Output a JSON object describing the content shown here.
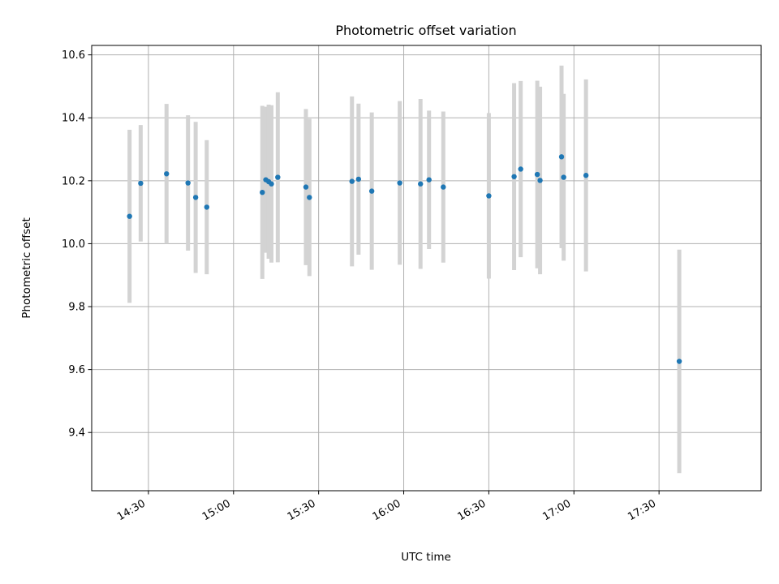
{
  "chart_data": {
    "type": "scatter",
    "title": "Photometric offset variation",
    "xlabel": "UTC time",
    "ylabel": "Photometric offset",
    "x_axis_type": "time",
    "xlim": [
      "14:10",
      "18:06"
    ],
    "ylim": [
      9.215,
      10.63
    ],
    "xticks": [
      "14:30",
      "15:00",
      "15:30",
      "16:00",
      "16:30",
      "17:00",
      "17:30"
    ],
    "yticks": [
      9.4,
      9.6,
      9.8,
      10.0,
      10.2,
      10.4,
      10.6
    ],
    "ytick_labels": [
      "9.4",
      "9.6",
      "9.8",
      "10.0",
      "10.2",
      "10.4",
      "10.6"
    ],
    "grid": true,
    "legend": false,
    "marker_color": "#1f77b4",
    "errorbar_color": "#d3d3d3",
    "points": [
      {
        "x": "14:23:21",
        "y": 10.087,
        "err": 0.275
      },
      {
        "x": "14:27:16",
        "y": 10.192,
        "err": 0.185
      },
      {
        "x": "14:36:23",
        "y": 10.222,
        "err": 0.222
      },
      {
        "x": "14:43:57",
        "y": 10.193,
        "err": 0.215
      },
      {
        "x": "14:46:39",
        "y": 10.147,
        "err": 0.24
      },
      {
        "x": "14:50:34",
        "y": 10.116,
        "err": 0.213
      },
      {
        "x": "15:10:09",
        "y": 10.163,
        "err": 0.275
      },
      {
        "x": "15:11:23",
        "y": 10.203,
        "err": 0.232
      },
      {
        "x": "15:12:23",
        "y": 10.197,
        "err": 0.245
      },
      {
        "x": "15:13:22",
        "y": 10.19,
        "err": 0.25
      },
      {
        "x": "15:15:36",
        "y": 10.211,
        "err": 0.27
      },
      {
        "x": "15:25:31",
        "y": 10.18,
        "err": 0.248
      },
      {
        "x": "15:26:45",
        "y": 10.147,
        "err": 0.25
      },
      {
        "x": "15:41:45",
        "y": 10.198,
        "err": 0.27
      },
      {
        "x": "15:44:04",
        "y": 10.205,
        "err": 0.24
      },
      {
        "x": "15:48:44",
        "y": 10.167,
        "err": 0.25
      },
      {
        "x": "15:58:36",
        "y": 10.193,
        "err": 0.26
      },
      {
        "x": "16:05:55",
        "y": 10.19,
        "err": 0.27
      },
      {
        "x": "16:08:55",
        "y": 10.203,
        "err": 0.22
      },
      {
        "x": "16:13:57",
        "y": 10.18,
        "err": 0.24
      },
      {
        "x": "16:30:00",
        "y": 10.152,
        "err": 0.263
      },
      {
        "x": "16:38:55",
        "y": 10.213,
        "err": 0.297
      },
      {
        "x": "16:41:14",
        "y": 10.237,
        "err": 0.28
      },
      {
        "x": "16:47:05",
        "y": 10.22,
        "err": 0.298
      },
      {
        "x": "16:48:04",
        "y": 10.201,
        "err": 0.298
      },
      {
        "x": "16:55:38",
        "y": 10.276,
        "err": 0.29
      },
      {
        "x": "16:56:23",
        "y": 10.211,
        "err": 0.265
      },
      {
        "x": "17:04:15",
        "y": 10.217,
        "err": 0.305
      },
      {
        "x": "17:37:08",
        "y": 9.626,
        "err": 0.355
      }
    ]
  }
}
